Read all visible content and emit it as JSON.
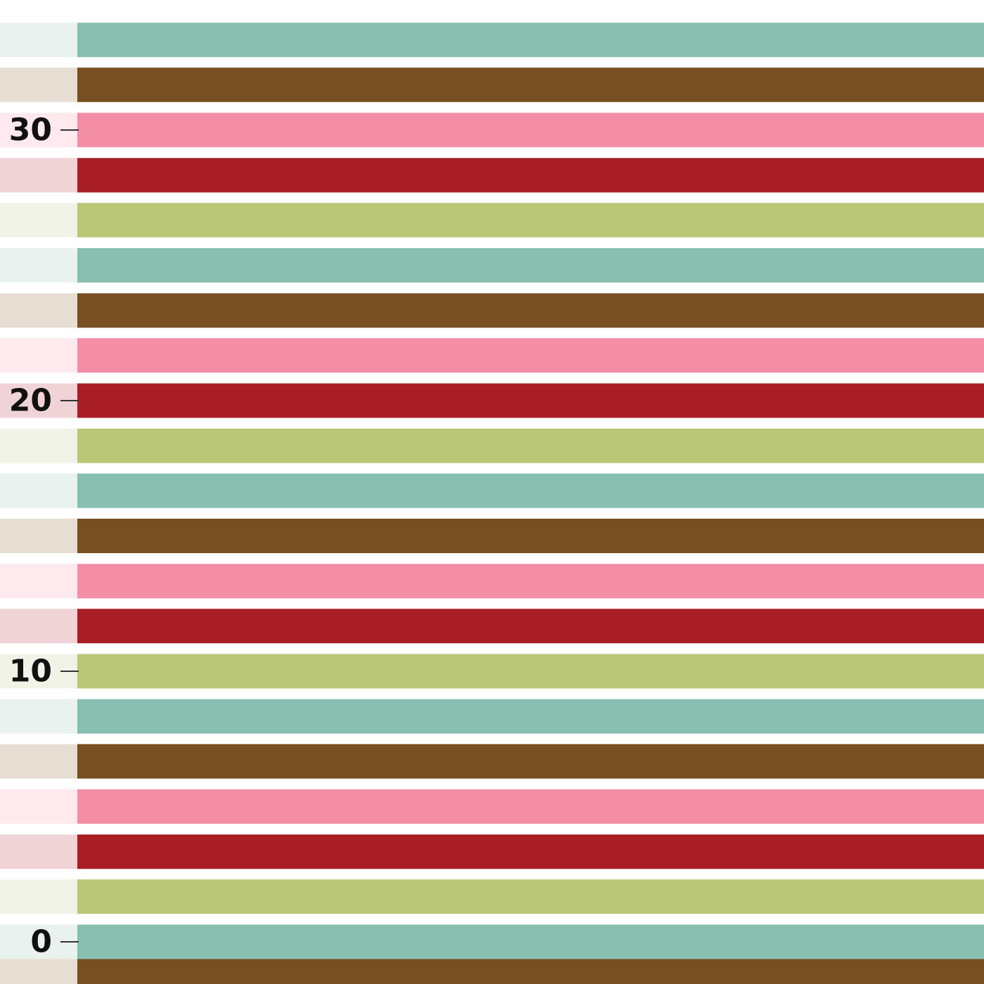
{
  "chart_data": {
    "type": "bar",
    "orientation": "horizontal",
    "title": "",
    "xlabel": "",
    "ylabel": "",
    "ylim": [
      -1.7,
      34.3
    ],
    "grid": false,
    "legend": "none",
    "y_ticks": [
      {
        "value": 0,
        "label": "0"
      },
      {
        "value": 10,
        "label": "10"
      },
      {
        "value": 20,
        "label": "20"
      },
      {
        "value": 30,
        "label": "30"
      }
    ],
    "palette": [
      "#88bfb1",
      "#774f20",
      "#f48ea6",
      "#a91d24",
      "#b9c776"
    ],
    "tint_palette": [
      "#e9f2ef",
      "#e6ddd3",
      "#feeaee",
      "#f0d3d6",
      "#f2f3e7"
    ],
    "bars": [
      {
        "y": -1,
        "color_index": 1
      },
      {
        "y": 0,
        "color_index": 0
      },
      {
        "y": 1.67,
        "color_index": 4
      },
      {
        "y": 3.33,
        "color_index": 3
      },
      {
        "y": 5,
        "color_index": 2
      },
      {
        "y": 6.67,
        "color_index": 1
      },
      {
        "y": 8.33,
        "color_index": 0
      },
      {
        "y": 10,
        "color_index": 4
      },
      {
        "y": 11.67,
        "color_index": 3
      },
      {
        "y": 13.33,
        "color_index": 2
      },
      {
        "y": 15,
        "color_index": 1
      },
      {
        "y": 16.67,
        "color_index": 0
      },
      {
        "y": 18.33,
        "color_index": 4
      },
      {
        "y": 20,
        "color_index": 3
      },
      {
        "y": 21.67,
        "color_index": 2
      },
      {
        "y": 23.33,
        "color_index": 1
      },
      {
        "y": 25,
        "color_index": 0
      },
      {
        "y": 26.67,
        "color_index": 4
      },
      {
        "y": 28.33,
        "color_index": 3
      },
      {
        "y": 30,
        "color_index": 2
      },
      {
        "y": 31.67,
        "color_index": 1
      },
      {
        "y": 33.33,
        "color_index": 0
      }
    ]
  }
}
